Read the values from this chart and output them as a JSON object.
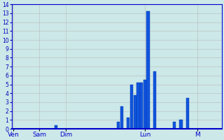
{
  "background_color": "#cce8e8",
  "grid_color": "#bbbbbb",
  "bar_color": "#1155dd",
  "bar_edge_color": "#0033aa",
  "axis_label_color": "#0000cc",
  "tick_label_color": "#0000bb",
  "ylim": [
    0,
    14
  ],
  "yticks": [
    0,
    1,
    2,
    3,
    4,
    5,
    6,
    7,
    8,
    9,
    10,
    11,
    12,
    13,
    14
  ],
  "day_labels": [
    "Ven",
    "Sam",
    "Dim",
    "Lun",
    "M"
  ],
  "day_tick_positions": [
    0,
    8,
    16,
    40,
    56
  ],
  "total_bars": 64,
  "bar_values": [
    0,
    0,
    0,
    0,
    0,
    0,
    0,
    0,
    0,
    0,
    0,
    0,
    0,
    0.4,
    0,
    0,
    0,
    0,
    0,
    0,
    0,
    0,
    0,
    0,
    0,
    0,
    0,
    0,
    0,
    0,
    0,
    0,
    0.8,
    2.5,
    0,
    1.3,
    5.0,
    3.8,
    5.2,
    5.2,
    5.5,
    13.2,
    0,
    6.5,
    0,
    0,
    0,
    0,
    0,
    0.8,
    0,
    1.0,
    0,
    3.5,
    0,
    0,
    0,
    0,
    0,
    0,
    0,
    0,
    0,
    0
  ]
}
